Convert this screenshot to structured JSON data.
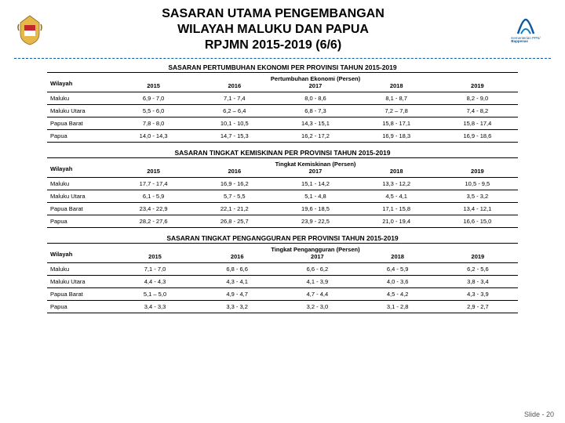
{
  "title_lines": [
    "SASARAN UTAMA PENGEMBANGAN",
    "WILAYAH MALUKU DAN PAPUA",
    "RPJMN 2015-2019 (6/6)"
  ],
  "logo_left_colors": {
    "shield": "#e6b84a",
    "red": "#c1272d",
    "outline": "#8a6b20"
  },
  "logo_right_colors": {
    "blue": "#0b5aa2",
    "orange": "#0b7bc4",
    "text": "#0b5aa2"
  },
  "logo_right_label_top": "Kementerian PPN/",
  "logo_right_label_bottom": "Bappenas",
  "divider_color": "#0b5aa2",
  "years": [
    "2015",
    "2016",
    "2017",
    "2018",
    "2019"
  ],
  "col_wilayah": "Wilayah",
  "tables": [
    {
      "title": "SASARAN PERTUMBUHAN EKONOMI PER PROVINSI TAHUN 2015-2019",
      "metric": "Pertumbuhan Ekonomi (Persen)",
      "rows": [
        {
          "w": "Maluku",
          "v": [
            "6,9 - 7,0",
            "7,1 - 7,4",
            "8,0 - 8,6",
            "8,1 - 8,7",
            "8,2 - 9,0"
          ]
        },
        {
          "w": "Maluku Utara",
          "v": [
            "5,5 - 6,0",
            "6,2 – 6,4",
            "6,8 - 7,3",
            "7,2 – 7,8",
            "7,4 - 8,2"
          ]
        },
        {
          "w": "Papua Barat",
          "v": [
            "7,8 - 8,0",
            "10,1 - 10,5",
            "14,3 - 15,1",
            "15,8 - 17,1",
            "15,8 - 17,4"
          ]
        },
        {
          "w": "Papua",
          "v": [
            "14,0 - 14,3",
            "14,7 - 15,3",
            "16,2 - 17,2",
            "16,9 - 18,3",
            "16,9 - 18,6"
          ]
        }
      ]
    },
    {
      "title": "SASARAN TINGKAT KEMISKINAN PER PROVINSI TAHUN 2015-2019",
      "metric": "Tingkat Kemiskinan (Persen)",
      "rows": [
        {
          "w": "Maluku",
          "v": [
            "17,7 - 17,4",
            "16,9 - 16,2",
            "15,1 - 14,2",
            "13,3 - 12,2",
            "10,5 - 9,5"
          ]
        },
        {
          "w": "Maluku Utara",
          "v": [
            "6,1 - 5,9",
            "5,7 - 5,5",
            "5,1 - 4,8",
            "4,5 - 4,1",
            "3,5 - 3,2"
          ]
        },
        {
          "w": "Papua Barat",
          "v": [
            "23,4 - 22,9",
            "22,1 - 21,2",
            "19,6 - 18,5",
            "17,1 - 15,8",
            "13,4 - 12,1"
          ]
        },
        {
          "w": "Papua",
          "v": [
            "28,2 - 27,6",
            "26,8 - 25,7",
            "23,9 - 22,5",
            "21,0 - 19,4",
            "16,6 - 15,0"
          ]
        }
      ]
    },
    {
      "title": "SASARAN TINGKAT PENGANGGURAN PER PROVINSI TAHUN 2015-2019",
      "metric": "Tingkat Pengangguran (Persen)",
      "rows": [
        {
          "w": "Maluku",
          "v": [
            "7,1 - 7,0",
            "6,8 - 6,6",
            "6,6 - 6,2",
            "6,4 - 5,9",
            "6,2 - 5,6"
          ]
        },
        {
          "w": "Maluku Utara",
          "v": [
            "4,4 - 4,3",
            "4,3 - 4,1",
            "4,1 - 3,9",
            "4,0 - 3,6",
            "3,8 - 3,4"
          ]
        },
        {
          "w": "Papua Barat",
          "v": [
            "5,1 – 5,0",
            "4,9 - 4,7",
            "4,7 - 4,4",
            "4,5 - 4,2",
            "4,3 - 3,9"
          ]
        },
        {
          "w": "Papua",
          "v": [
            "3,4 - 3,3",
            "3,3 - 3,2",
            "3,2 - 3,0",
            "3,1 - 2,8",
            "2,9 - 2,7"
          ]
        }
      ]
    }
  ],
  "footer": "Slide - 20"
}
